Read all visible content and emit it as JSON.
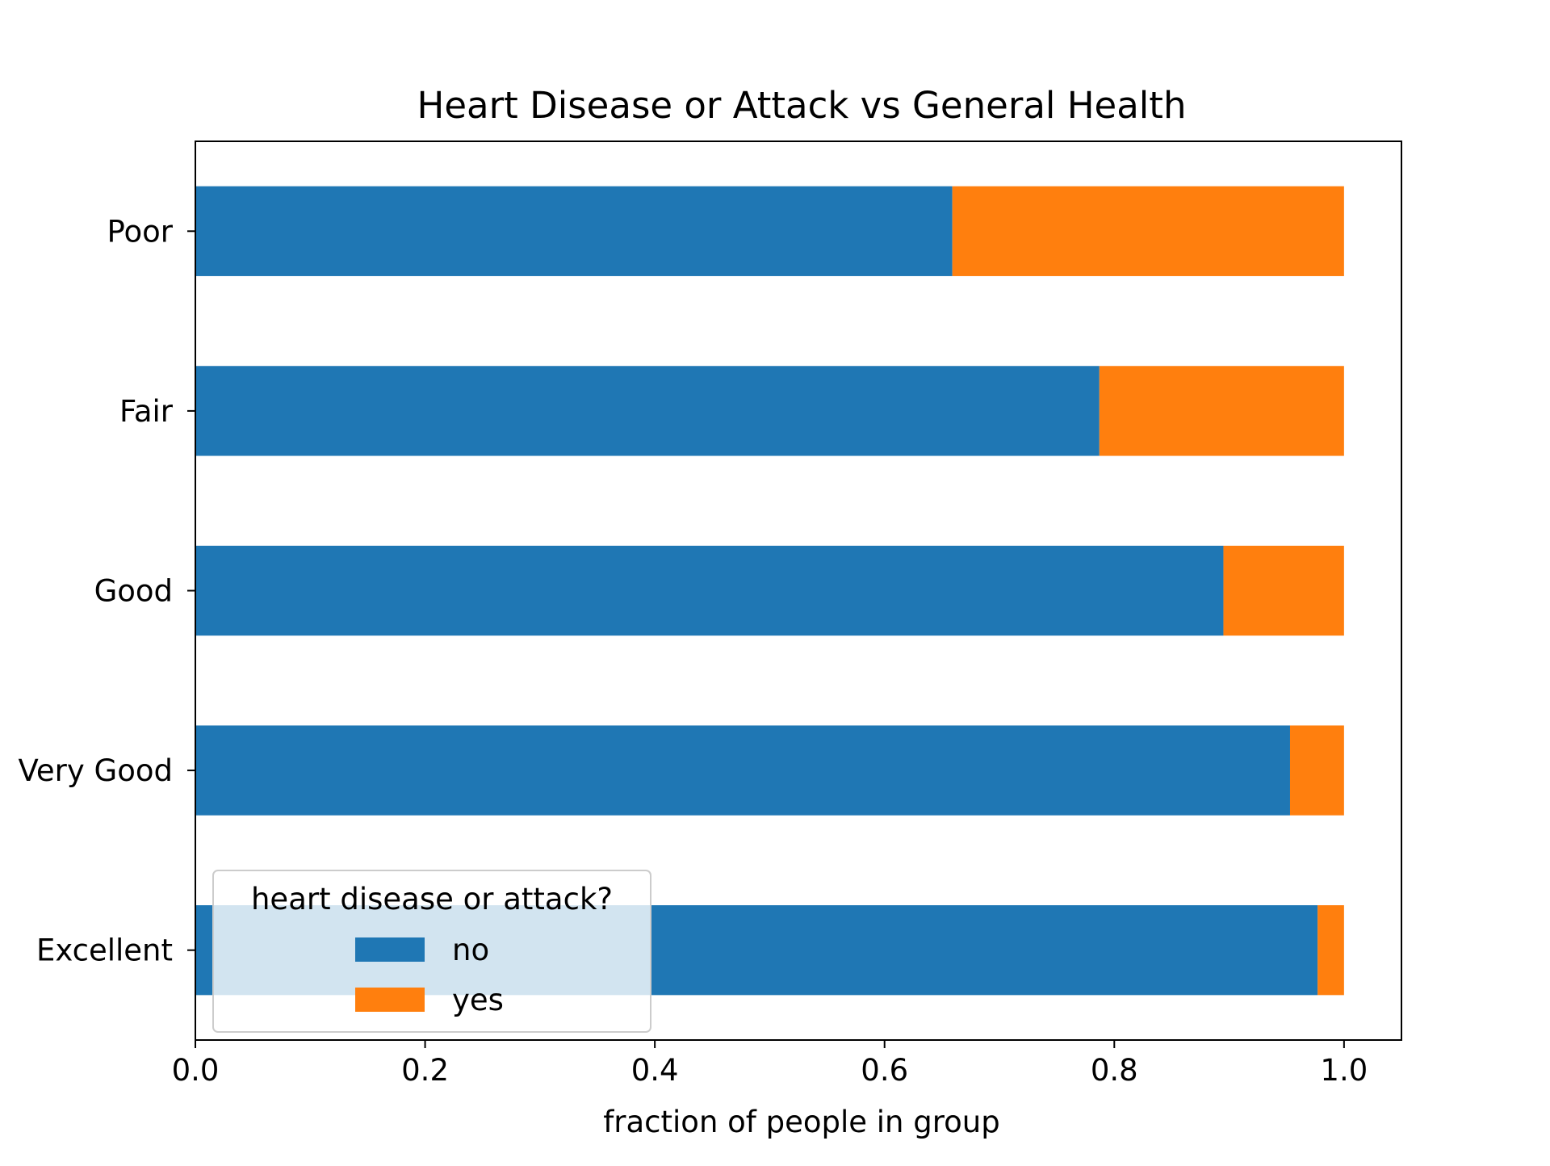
{
  "chart_data": {
    "type": "bar",
    "orientation": "horizontal",
    "stacked": true,
    "title": "Heart Disease or Attack vs General Health",
    "xlabel": "fraction of people in group",
    "ylabel": "",
    "categories": [
      "Excellent",
      "Very Good",
      "Good",
      "Fair",
      "Poor"
    ],
    "series": [
      {
        "name": "no",
        "color": "#1f77b4",
        "values": [
          0.977,
          0.953,
          0.895,
          0.787,
          0.659
        ]
      },
      {
        "name": "yes",
        "color": "#ff7f0e",
        "values": [
          0.023,
          0.047,
          0.105,
          0.213,
          0.341
        ]
      }
    ],
    "xlim": [
      0,
      1.05
    ],
    "xticks": [
      "0.0",
      "0.2",
      "0.4",
      "0.6",
      "0.8",
      "1.0"
    ],
    "grid": false,
    "legend": {
      "title": "heart disease or attack?",
      "placement": "lower-left"
    }
  }
}
